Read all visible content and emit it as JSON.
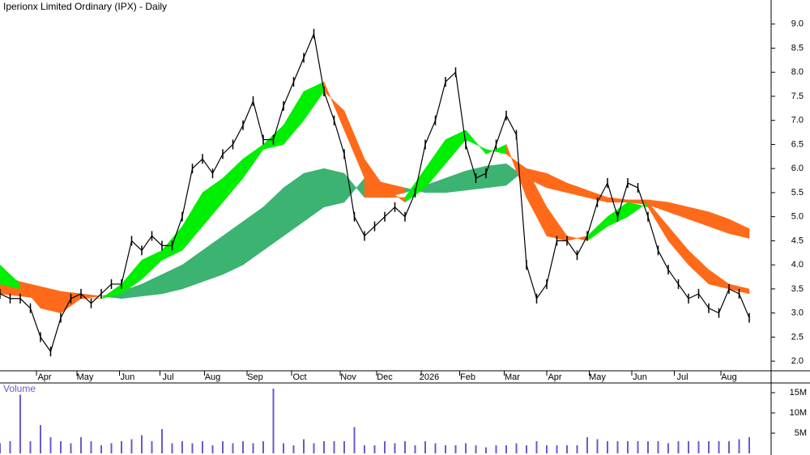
{
  "chart_data": {
    "type": "line",
    "title": "Iperionx Limited Ordinary (IPX) - Daily",
    "xlim": [
      0,
      19
    ],
    "xticks": [
      {
        "value": 1.1,
        "label": "Apr"
      },
      {
        "value": 2.1,
        "label": "May"
      },
      {
        "value": 3.15,
        "label": "Jun"
      },
      {
        "value": 4.15,
        "label": "Jul"
      },
      {
        "value": 5.25,
        "label": "Aug"
      },
      {
        "value": 6.3,
        "label": "Sep"
      },
      {
        "value": 7.4,
        "label": "Oct"
      },
      {
        "value": 8.6,
        "label": "Nov"
      },
      {
        "value": 9.5,
        "label": "Dec"
      },
      {
        "value": 10.6,
        "label": "2026"
      },
      {
        "value": 11.55,
        "label": "Feb"
      },
      {
        "value": 12.65,
        "label": "Mar"
      },
      {
        "value": 13.7,
        "label": "Apr"
      },
      {
        "value": 14.75,
        "label": "May"
      },
      {
        "value": 15.8,
        "label": "Jun"
      },
      {
        "value": 16.85,
        "label": "Jul"
      },
      {
        "value": 18.0,
        "label": "Aug"
      }
    ],
    "ylim": [
      1.8,
      9.5
    ],
    "yticks": [
      {
        "value": 9.0,
        "label": "9.0"
      },
      {
        "value": 8.5,
        "label": "8.5"
      },
      {
        "value": 8.0,
        "label": "8.0"
      },
      {
        "value": 7.5,
        "label": "7.5"
      },
      {
        "value": 7.0,
        "label": "7.0"
      },
      {
        "value": 6.5,
        "label": "6.5"
      },
      {
        "value": 6.0,
        "label": "6.0"
      },
      {
        "value": 5.5,
        "label": "5.5"
      },
      {
        "value": 5.0,
        "label": "5.0"
      },
      {
        "value": 4.5,
        "label": "4.5"
      },
      {
        "value": 4.0,
        "label": "4.0"
      },
      {
        "value": 3.5,
        "label": "3.5"
      },
      {
        "value": 3.0,
        "label": "3.0"
      },
      {
        "value": 2.5,
        "label": "2.5"
      },
      {
        "value": 2.0,
        "label": "2.0"
      }
    ],
    "x": [
      0,
      0.25,
      0.5,
      0.75,
      1,
      1.25,
      1.5,
      1.75,
      2,
      2.25,
      2.5,
      2.75,
      3,
      3.25,
      3.5,
      3.75,
      4,
      4.25,
      4.5,
      4.75,
      5,
      5.25,
      5.5,
      5.75,
      6,
      6.25,
      6.5,
      6.75,
      7,
      7.25,
      7.5,
      7.75,
      8,
      8.25,
      8.5,
      8.75,
      9,
      9.25,
      9.5,
      9.75,
      10,
      10.25,
      10.5,
      10.75,
      11,
      11.25,
      11.5,
      11.75,
      12,
      12.25,
      12.5,
      12.75,
      13,
      13.25,
      13.5,
      13.75,
      14,
      14.25,
      14.5,
      14.75,
      15,
      15.25,
      15.5,
      15.75,
      16,
      16.25,
      16.5,
      16.75,
      17,
      17.25,
      17.5,
      17.75,
      18,
      18.25,
      18.5
    ],
    "series": [
      {
        "color": "#000000",
        "values": [
          3.4,
          3.3,
          3.3,
          3.1,
          2.5,
          2.2,
          2.9,
          3.3,
          3.4,
          3.2,
          3.4,
          3.6,
          3.6,
          4.5,
          4.3,
          4.6,
          4.4,
          4.4,
          5.0,
          6.0,
          6.2,
          5.9,
          6.3,
          6.5,
          6.9,
          7.4,
          6.6,
          6.6,
          7.3,
          7.8,
          8.3,
          8.8,
          7.6,
          7.0,
          6.3,
          5.0,
          4.6,
          4.8,
          5.0,
          5.2,
          5.0,
          5.5,
          6.5,
          7.0,
          7.8,
          8.0,
          6.5,
          5.8,
          5.9,
          6.5,
          7.1,
          6.7,
          4.0,
          3.3,
          3.6,
          4.5,
          4.5,
          4.2,
          4.6,
          5.3,
          5.7,
          5.0,
          5.7,
          5.6,
          5.0,
          4.3,
          3.9,
          3.6,
          3.3,
          3.4,
          3.1,
          3.0,
          3.5,
          3.4,
          2.9
        ]
      }
    ],
    "bands": [
      {
        "up_color": "#3cb371",
        "down_color": "#ff6a1a",
        "x": [
          0,
          0.5,
          1,
          1.5,
          2,
          2.5,
          3,
          3.5,
          4,
          4.5,
          5,
          5.5,
          6,
          6.5,
          7,
          7.5,
          8,
          8.5,
          9,
          9.5,
          10,
          10.5,
          11,
          11.5,
          12,
          12.5,
          13,
          13.5,
          14,
          14.5,
          15,
          15.5,
          16,
          16.5,
          17,
          17.5,
          18,
          18.5
        ],
        "fast": [
          3.4,
          3.35,
          3.3,
          3.25,
          3.3,
          3.35,
          3.45,
          3.6,
          3.8,
          4.0,
          4.3,
          4.6,
          4.9,
          5.2,
          5.6,
          5.9,
          6.0,
          5.9,
          5.4,
          5.4,
          5.5,
          5.65,
          5.8,
          5.95,
          6.05,
          6.1,
          5.8,
          5.6,
          5.5,
          5.4,
          5.3,
          5.3,
          5.25,
          5.1,
          4.95,
          4.8,
          4.65,
          4.55
        ],
        "slow": [
          3.8,
          3.65,
          3.55,
          3.45,
          3.4,
          3.35,
          3.3,
          3.35,
          3.4,
          3.5,
          3.65,
          3.8,
          4.0,
          4.3,
          4.6,
          4.9,
          5.2,
          5.3,
          5.8,
          5.7,
          5.6,
          5.5,
          5.5,
          5.55,
          5.6,
          5.65,
          6.0,
          5.9,
          5.7,
          5.55,
          5.4,
          5.35,
          5.35,
          5.3,
          5.2,
          5.1,
          4.95,
          4.75
        ]
      },
      {
        "up_color": "#00ee00",
        "down_color": "#ff6a1a",
        "x": [
          0,
          0.5,
          1,
          1.5,
          2,
          2.5,
          3,
          3.5,
          4,
          4.5,
          5,
          5.5,
          6,
          6.5,
          7,
          7.5,
          8,
          8.5,
          9,
          9.5,
          10,
          10.5,
          11,
          11.5,
          12,
          12.5,
          13,
          13.5,
          14,
          14.5,
          15,
          15.5,
          16,
          16.5,
          17,
          17.5,
          18,
          18.5
        ],
        "fast": [
          4.0,
          3.6,
          3.1,
          3.0,
          3.3,
          3.3,
          3.6,
          4.1,
          4.3,
          4.8,
          5.5,
          5.8,
          6.2,
          6.5,
          6.9,
          7.6,
          7.8,
          6.8,
          5.8,
          5.4,
          5.4,
          6.0,
          6.6,
          6.8,
          6.3,
          6.5,
          5.4,
          4.6,
          4.5,
          4.6,
          5.0,
          5.3,
          5.2,
          4.5,
          4.0,
          3.6,
          3.5,
          3.4
        ],
        "slow": [
          3.6,
          3.5,
          3.4,
          3.3,
          3.3,
          3.3,
          3.4,
          3.7,
          4.1,
          4.3,
          4.8,
          5.3,
          5.8,
          6.4,
          6.5,
          7.0,
          7.6,
          7.2,
          6.2,
          5.6,
          5.3,
          5.6,
          6.1,
          6.6,
          6.4,
          6.3,
          6.0,
          5.2,
          4.6,
          4.5,
          4.8,
          5.0,
          5.3,
          4.8,
          4.3,
          3.9,
          3.6,
          3.5
        ]
      }
    ],
    "volume": {
      "label": "Volume",
      "color": "#6a5acd",
      "ylim": [
        0,
        17000000
      ],
      "yticks": [
        {
          "value": 5000000,
          "label": "5M"
        },
        {
          "value": 10000000,
          "label": "10M"
        },
        {
          "value": 15000000,
          "label": "15M"
        }
      ],
      "values": [
        2500000,
        3000000,
        14500000,
        3000000,
        7000000,
        4000000,
        3000000,
        2500000,
        4000000,
        3000000,
        2000000,
        2500000,
        3000000,
        3500000,
        4500000,
        3000000,
        6000000,
        2500000,
        3000000,
        2500000,
        3000000,
        2000000,
        3000000,
        2500000,
        3000000,
        2500000,
        3000000,
        16000000,
        2500000,
        2000000,
        3500000,
        2500000,
        3000000,
        3000000,
        3000000,
        6500000,
        2000000,
        2000000,
        3000000,
        2500000,
        3000000,
        2000000,
        3000000,
        2500000,
        2000000,
        2000000,
        2500000,
        2000000,
        1500000,
        2000000,
        2000000,
        2500000,
        2000000,
        3000000,
        2000000,
        2000000,
        2000000,
        2000000,
        4000000,
        3500000,
        3000000,
        3000000,
        3000000,
        3000000,
        3000000,
        3000000,
        2500000,
        3000000,
        3000000,
        3000000,
        3000000,
        3000000,
        3000000,
        3500000,
        4000000
      ]
    }
  }
}
